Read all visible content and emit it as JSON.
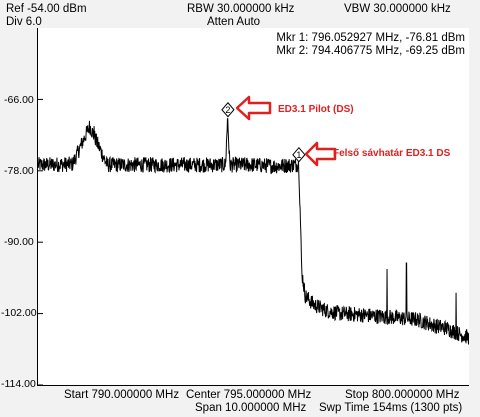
{
  "header": {
    "ref": "Ref -54.00 dBm",
    "div": "Div 6.0",
    "rbw": "RBW 30.000000 kHz",
    "atten": "Atten Auto",
    "vbw": "VBW 30.000000 kHz"
  },
  "markers": {
    "mkr1": "Mkr 1: 796.052927 MHz, -76.81 dBm",
    "mkr2": "Mkr 2: 794.406775 MHz, -69.25 dBm",
    "mkr1_symbol": "1",
    "mkr2_symbol": "2"
  },
  "yaxis_labels": [
    "-66.00",
    "-78.00",
    "-90.00",
    "-102.00",
    "-114.00"
  ],
  "footer": {
    "start": "Start 790.000000 MHz",
    "center": "Center 795.000000 MHz",
    "stop": "Stop 800.000000 MHz",
    "span": "Span 10.000000 MHz",
    "sweep": "Swp Time 154ms (1300 pts)"
  },
  "annotations": {
    "pilot": "ED3.1 Pilot (DS)",
    "edge": "Felső sávhatár ED3.1 DS",
    "color": "#e02020"
  },
  "chart_data": {
    "type": "line",
    "xlim": [
      790,
      800
    ],
    "ylim": [
      -114,
      -54
    ],
    "x_unit": "MHz",
    "y_unit": "dBm",
    "grid": false,
    "series": [
      {
        "x": [
          790.0,
          790.8,
          791.2,
          791.6,
          791.8,
          792.2,
          793.0,
          794.0,
          794.35,
          794.4,
          794.45,
          795.0,
          795.5,
          796.0,
          796.05,
          796.08,
          796.12,
          796.2,
          796.4,
          796.7,
          797.0,
          797.5,
          798.0,
          798.5,
          798.8,
          799.0,
          799.2,
          799.5,
          799.8,
          800.0
        ],
        "y": [
          -77.0,
          -76.9,
          -70.5,
          -77.0,
          -77.0,
          -77.0,
          -77.0,
          -77.0,
          -77.0,
          -69.25,
          -77.0,
          -77.0,
          -77.2,
          -77.0,
          -76.81,
          -84.0,
          -95.0,
          -99.0,
          -100.5,
          -101.5,
          -102.0,
          -102.2,
          -102.5,
          -102.8,
          -103.0,
          -103.5,
          -104.0,
          -104.5,
          -105.5,
          -106.0
        ]
      }
    ],
    "spurs": [
      {
        "x": 791.3,
        "y": -70.5
      },
      {
        "x": 794.4,
        "y": -69.25
      },
      {
        "x": 798.1,
        "y": -94.5
      },
      {
        "x": 798.55,
        "y": -93.5
      },
      {
        "x": 799.7,
        "y": -98.5
      }
    ],
    "markers": [
      {
        "id": "1",
        "x": 796.052927,
        "y": -76.81
      },
      {
        "id": "2",
        "x": 794.406775,
        "y": -69.25
      }
    ]
  }
}
